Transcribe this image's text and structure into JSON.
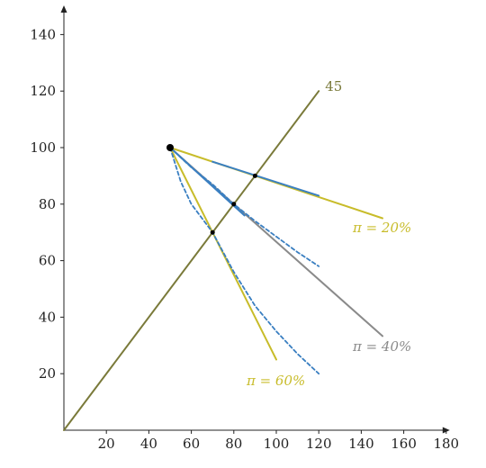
{
  "chart_data": {
    "type": "line",
    "title": "",
    "xlabel": "",
    "ylabel": "",
    "xlim": [
      0,
      180
    ],
    "ylim": [
      0,
      150
    ],
    "x_ticks": [
      20,
      40,
      60,
      80,
      100,
      120,
      140,
      160,
      180
    ],
    "y_ticks": [
      20,
      40,
      60,
      80,
      100,
      120,
      140
    ],
    "grid": false,
    "colors": {
      "diagonal": "#7a7a3a",
      "yellow": "#c8bc2a",
      "gray": "#8a8a8a",
      "blue": "#3a7fc1",
      "point": "#000000"
    },
    "labels": {
      "diagonal": "45",
      "pi20": "π = 20%",
      "pi40": "π = 40%",
      "pi60": "π = 60%"
    },
    "series": [
      {
        "key": "diagonal",
        "style": "solid",
        "color": "diagonal",
        "points": [
          [
            0,
            0
          ],
          [
            120,
            120
          ]
        ]
      },
      {
        "key": "pi20",
        "style": "solid",
        "color": "yellow",
        "points": [
          [
            50,
            100
          ],
          [
            150,
            75
          ]
        ]
      },
      {
        "key": "pi40",
        "style": "solid",
        "color": "gray",
        "points": [
          [
            50,
            100
          ],
          [
            150,
            33.3
          ]
        ]
      },
      {
        "key": "pi60",
        "style": "solid",
        "color": "yellow",
        "points": [
          [
            50,
            100
          ],
          [
            100,
            25
          ]
        ]
      },
      {
        "key": "tangent-20",
        "style": "solid",
        "color": "blue",
        "points": [
          [
            70,
            95
          ],
          [
            120,
            83
          ]
        ]
      },
      {
        "key": "tangent-40",
        "style": "solid",
        "color": "blue",
        "points": [
          [
            50,
            100
          ],
          [
            85,
            76
          ]
        ]
      },
      {
        "key": "curve-40",
        "style": "dashed",
        "color": "blue",
        "points": [
          [
            50,
            100
          ],
          [
            60,
            93
          ],
          [
            70,
            87
          ],
          [
            80,
            80
          ],
          [
            90,
            74
          ],
          [
            100,
            68.5
          ],
          [
            110,
            63
          ],
          [
            120,
            58
          ]
        ]
      },
      {
        "key": "curve-60",
        "style": "dashed",
        "color": "blue",
        "points": [
          [
            50,
            100
          ],
          [
            55,
            88
          ],
          [
            60,
            80
          ],
          [
            70,
            70
          ],
          [
            80,
            56
          ],
          [
            90,
            44
          ],
          [
            100,
            35
          ],
          [
            110,
            27
          ],
          [
            120,
            20
          ]
        ]
      }
    ],
    "points": [
      {
        "name": "endowment-point",
        "x": 50,
        "y": 100,
        "size": "large"
      },
      {
        "name": "intersection-20",
        "x": 90,
        "y": 90,
        "size": "small"
      },
      {
        "name": "intersection-40",
        "x": 80,
        "y": 80,
        "size": "small"
      },
      {
        "name": "intersection-60",
        "x": 70,
        "y": 70,
        "size": "small"
      }
    ],
    "series_labels": [
      {
        "key": "diagonal",
        "x": 123,
        "y": 120,
        "color": "diagonal"
      },
      {
        "key": "pi20",
        "x": 136,
        "y": 70,
        "color": "yellow"
      },
      {
        "key": "pi40",
        "x": 136,
        "y": 28,
        "color": "gray"
      },
      {
        "key": "pi60",
        "x": 86,
        "y": 16,
        "color": "yellow"
      }
    ]
  }
}
